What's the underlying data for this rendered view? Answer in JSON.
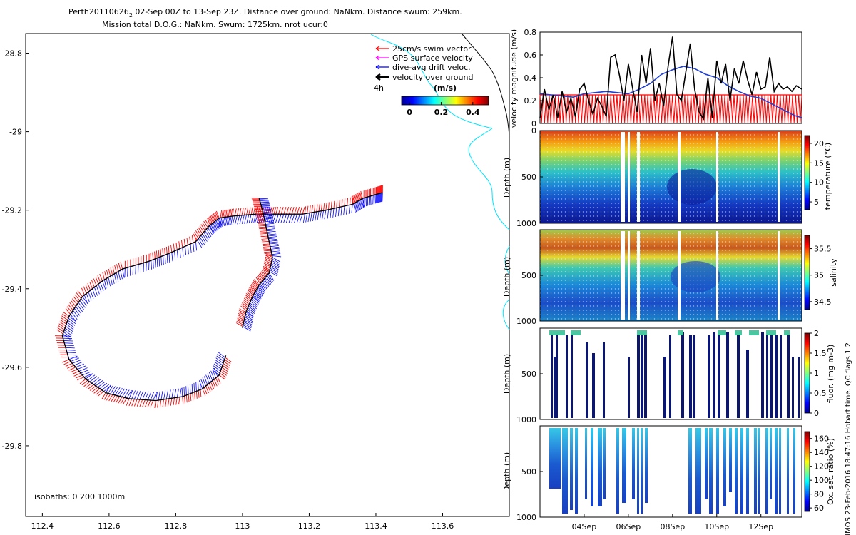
{
  "title": {
    "line1_prefix": "Perth20110626",
    "line1_sub": "2",
    "line1_rest": " 02-Sep 00Z to 13-Sep 23Z. Distance over ground: NaNkm. Distance swum: 259km.",
    "line2": "Mission total D.O.G.: NaNkm. Swum: 1725km. nrot ucur:0"
  },
  "side_caption": "© IMOS 23-Feb-2016 18:47:16 Hobart time. QC flags 1  2",
  "colors": {
    "swim": "#ff0000",
    "gps": "#ff00ff",
    "drift": "#0000ff",
    "dog": "#000000",
    "coast": "#00e5ff",
    "vel_line": "#1f3fd6"
  },
  "chart_data": [
    {
      "name": "track_map",
      "type": "scatter",
      "title": "",
      "xlabel": "",
      "ylabel": "",
      "xlim": [
        112.35,
        113.8
      ],
      "ylim": [
        -29.98,
        -28.75
      ],
      "xticks": [
        "112.4",
        "112.6",
        "112.8",
        "113",
        "113.2",
        "113.4",
        "113.6"
      ],
      "xtick_values": [
        112.4,
        112.6,
        112.8,
        113.0,
        113.2,
        113.4,
        113.6
      ],
      "yticks": [
        "-28.8",
        "-29",
        "-29.2",
        "-29.4",
        "-29.6",
        "-29.8"
      ],
      "ytick_values": [
        -28.8,
        -29.0,
        -29.2,
        -29.4,
        -29.6,
        -29.8
      ],
      "track": {
        "x": [
          113.42,
          113.4,
          113.36,
          113.33,
          113.25,
          113.18,
          113.1,
          113.04,
          112.97,
          112.93,
          112.9,
          112.86,
          112.78,
          112.72,
          112.64,
          112.58,
          112.52,
          112.48,
          112.46,
          112.48,
          112.53,
          112.59,
          112.66,
          112.74,
          112.82,
          112.88,
          112.93,
          112.95
        ],
        "y": [
          -29.155,
          -29.16,
          -29.17,
          -29.185,
          -29.2,
          -29.21,
          -29.21,
          -29.21,
          -29.215,
          -29.22,
          -29.24,
          -29.28,
          -29.31,
          -29.33,
          -29.35,
          -29.38,
          -29.42,
          -29.47,
          -29.52,
          -29.58,
          -29.63,
          -29.665,
          -29.68,
          -29.685,
          -29.675,
          -29.655,
          -29.62,
          -29.57
        ]
      },
      "track2": {
        "x": [
          113.05,
          113.06,
          113.07,
          113.08,
          113.09,
          113.08,
          113.05,
          113.03,
          113.01,
          113.0
        ],
        "y": [
          -29.17,
          -29.2,
          -29.24,
          -29.28,
          -29.32,
          -29.36,
          -29.39,
          -29.42,
          -29.46,
          -29.5
        ]
      },
      "legend": {
        "items": [
          "25cm/s swim vector",
          "GPS surface velocity",
          "dive-avg drift veloc.",
          "velocity over ground"
        ],
        "time_label": "4h",
        "units_label": "(m/s)",
        "colorbar_ticks": [
          "0",
          "0.2",
          "0.4"
        ],
        "colorbar_values": [
          0,
          0.2,
          0.4
        ],
        "colorbar_range": [
          -0.05,
          0.5
        ]
      },
      "isobaths_label": "isobaths: 0   200   1000m"
    },
    {
      "name": "velocity_magnitude",
      "type": "line",
      "ylabel": "velocity magnitude (m/s)",
      "ylim": [
        0,
        0.8
      ],
      "yticks": [
        "0",
        "0.2",
        "0.4",
        "0.6",
        "0.8"
      ],
      "ytick_values": [
        0,
        0.2,
        0.4,
        0.6,
        0.8
      ],
      "xlim": [
        0,
        11.85
      ],
      "series": [
        {
          "name": "drift velocity",
          "x": [
            0,
            0.5,
            1.0,
            1.5,
            2.0,
            2.5,
            3.0,
            3.5,
            4.0,
            4.5,
            5.0,
            5.5,
            6.0,
            6.5,
            7.0,
            7.5,
            8.0,
            8.5,
            9.0,
            9.5,
            10.0,
            10.5,
            11.0,
            11.5,
            11.85
          ],
          "y": [
            0.26,
            0.25,
            0.24,
            0.23,
            0.26,
            0.27,
            0.28,
            0.27,
            0.26,
            0.3,
            0.35,
            0.43,
            0.47,
            0.5,
            0.48,
            0.43,
            0.4,
            0.33,
            0.28,
            0.24,
            0.22,
            0.17,
            0.12,
            0.07,
            0.05
          ]
        },
        {
          "name": "velocity over ground",
          "x": [
            0,
            0.2,
            0.4,
            0.6,
            0.8,
            1.0,
            1.2,
            1.4,
            1.6,
            1.8,
            2.0,
            2.2,
            2.4,
            2.6,
            2.8,
            3.0,
            3.2,
            3.4,
            3.6,
            3.8,
            4.0,
            4.2,
            4.4,
            4.6,
            4.8,
            5.0,
            5.2,
            5.4,
            5.6,
            5.8,
            6.0,
            6.2,
            6.4,
            6.6,
            6.8,
            7.0,
            7.2,
            7.4,
            7.6,
            7.8,
            8.0,
            8.2,
            8.4,
            8.6,
            8.8,
            9.0,
            9.2,
            9.4,
            9.6,
            9.8,
            10.0,
            10.2,
            10.4,
            10.6,
            10.8,
            11.0,
            11.2,
            11.4,
            11.6,
            11.85
          ],
          "y": [
            0.05,
            0.3,
            0.12,
            0.25,
            0.05,
            0.28,
            0.1,
            0.22,
            0.06,
            0.3,
            0.35,
            0.2,
            0.08,
            0.22,
            0.15,
            0.06,
            0.58,
            0.6,
            0.42,
            0.2,
            0.52,
            0.3,
            0.1,
            0.6,
            0.35,
            0.66,
            0.2,
            0.35,
            0.15,
            0.5,
            0.76,
            0.25,
            0.2,
            0.45,
            0.7,
            0.3,
            0.1,
            0.04,
            0.4,
            0.05,
            0.55,
            0.35,
            0.52,
            0.2,
            0.48,
            0.35,
            0.55,
            0.38,
            0.25,
            0.45,
            0.3,
            0.32,
            0.58,
            0.28,
            0.35,
            0.3,
            0.32,
            0.28,
            0.33,
            0.3
          ]
        },
        {
          "name": "swim velocity",
          "constant": 0.25
        }
      ]
    },
    {
      "name": "temperature_section",
      "type": "heatmap",
      "ylabel": "Depth (m)",
      "yticks": [
        "0",
        "500",
        "1000"
      ],
      "ytick_values": [
        0,
        500,
        1000
      ],
      "colorbar_label": "temperature (°C)",
      "colorbar_ticks": [
        "5",
        "10",
        "15",
        "20"
      ],
      "colorbar_values": [
        5,
        10,
        15,
        20
      ],
      "colorbar_range": [
        3,
        22
      ]
    },
    {
      "name": "salinity_section",
      "type": "heatmap",
      "ylabel": "Depth (m)",
      "yticks": [
        "500",
        "1000"
      ],
      "ytick_values": [
        500,
        1000
      ],
      "colorbar_label": "salinity",
      "colorbar_ticks": [
        "34.5",
        "35",
        "35.5"
      ],
      "colorbar_values": [
        34.5,
        35,
        35.5
      ],
      "colorbar_range": [
        34.35,
        35.75
      ]
    },
    {
      "name": "fluorescence_section",
      "type": "heatmap",
      "ylabel": "Depth (m)",
      "yticks": [
        "500",
        "1000"
      ],
      "ytick_values": [
        500,
        1000
      ],
      "colorbar_label": "fluor. (mg m-3)",
      "colorbar_ticks": [
        "0",
        "0.5",
        "1",
        "1.5",
        "2"
      ],
      "colorbar_values": [
        0,
        0.5,
        1,
        1.5,
        2
      ],
      "colorbar_range": [
        0,
        2
      ]
    },
    {
      "name": "oxygen_section",
      "type": "heatmap",
      "ylabel": "Depth (m)",
      "yticks": [
        "500",
        "1000"
      ],
      "ytick_values": [
        500,
        1000
      ],
      "xticks": [
        "04Sep",
        "06Sep",
        "08Sep",
        "10Sep",
        "12Sep"
      ],
      "xtick_values": [
        2,
        4,
        6,
        8,
        10
      ],
      "colorbar_label": "Ox. sat. ratio (%)",
      "colorbar_ticks": [
        "60",
        "80",
        "100",
        "120",
        "140",
        "160"
      ],
      "colorbar_values": [
        60,
        80,
        100,
        120,
        140,
        160
      ],
      "colorbar_range": [
        55,
        170
      ]
    }
  ]
}
